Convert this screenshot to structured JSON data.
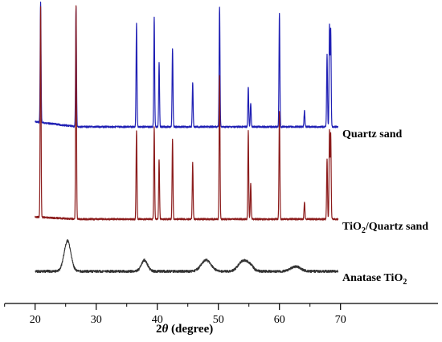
{
  "chart_data": {
    "type": "line",
    "title": "",
    "xlabel": "2θ (degree)",
    "ylabel": "",
    "xlim": [
      15,
      72
    ],
    "x_ticks": [
      20,
      30,
      40,
      50,
      60,
      70
    ],
    "grid": false,
    "legend": "inline-right",
    "series": [
      {
        "name": "Quartz sand",
        "color": "#1f1fb4",
        "baseline": 158,
        "peaks": [
          [
            20.9,
            150
          ],
          [
            26.7,
            150
          ],
          [
            36.6,
            128
          ],
          [
            39.5,
            137
          ],
          [
            40.3,
            80
          ],
          [
            42.5,
            98
          ],
          [
            45.8,
            55
          ],
          [
            50.2,
            150
          ],
          [
            54.9,
            50
          ],
          [
            55.3,
            30
          ],
          [
            60.0,
            142
          ],
          [
            64.1,
            20
          ],
          [
            67.8,
            90
          ],
          [
            68.2,
            125
          ],
          [
            68.4,
            120
          ]
        ]
      },
      {
        "name": "TiO2/Quartz sand",
        "color": "#8b1a1a",
        "baseline": 273,
        "peaks": [
          [
            20.9,
            262
          ],
          [
            26.7,
            265
          ],
          [
            36.6,
            110
          ],
          [
            39.5,
            115
          ],
          [
            40.3,
            75
          ],
          [
            42.5,
            100
          ],
          [
            45.8,
            70
          ],
          [
            50.2,
            180
          ],
          [
            54.9,
            110
          ],
          [
            55.3,
            45
          ],
          [
            60.0,
            135
          ],
          [
            64.1,
            22
          ],
          [
            67.8,
            75
          ],
          [
            68.2,
            110
          ],
          [
            68.4,
            105
          ]
        ]
      },
      {
        "name": "Anatase TiO2",
        "color": "#333333",
        "baseline": 338,
        "broad_peaks": [
          [
            25.3,
            38,
            0.55
          ],
          [
            37.9,
            14,
            0.5
          ],
          [
            48.0,
            14,
            0.8
          ],
          [
            53.9,
            12,
            0.7
          ],
          [
            55.1,
            8,
            0.6
          ],
          [
            62.7,
            6,
            0.8
          ]
        ]
      }
    ]
  },
  "labels": {
    "quartz": "Quartz sand",
    "tio2_prefix": "TiO",
    "tio2_sub": "2",
    "tio2_suffix": "/Quartz sand",
    "anatase_prefix": "Anatase TiO",
    "anatase_sub": "2",
    "xlabel_num": "2",
    "xlabel_theta": "θ",
    "xlabel_unit": " (degree)"
  }
}
